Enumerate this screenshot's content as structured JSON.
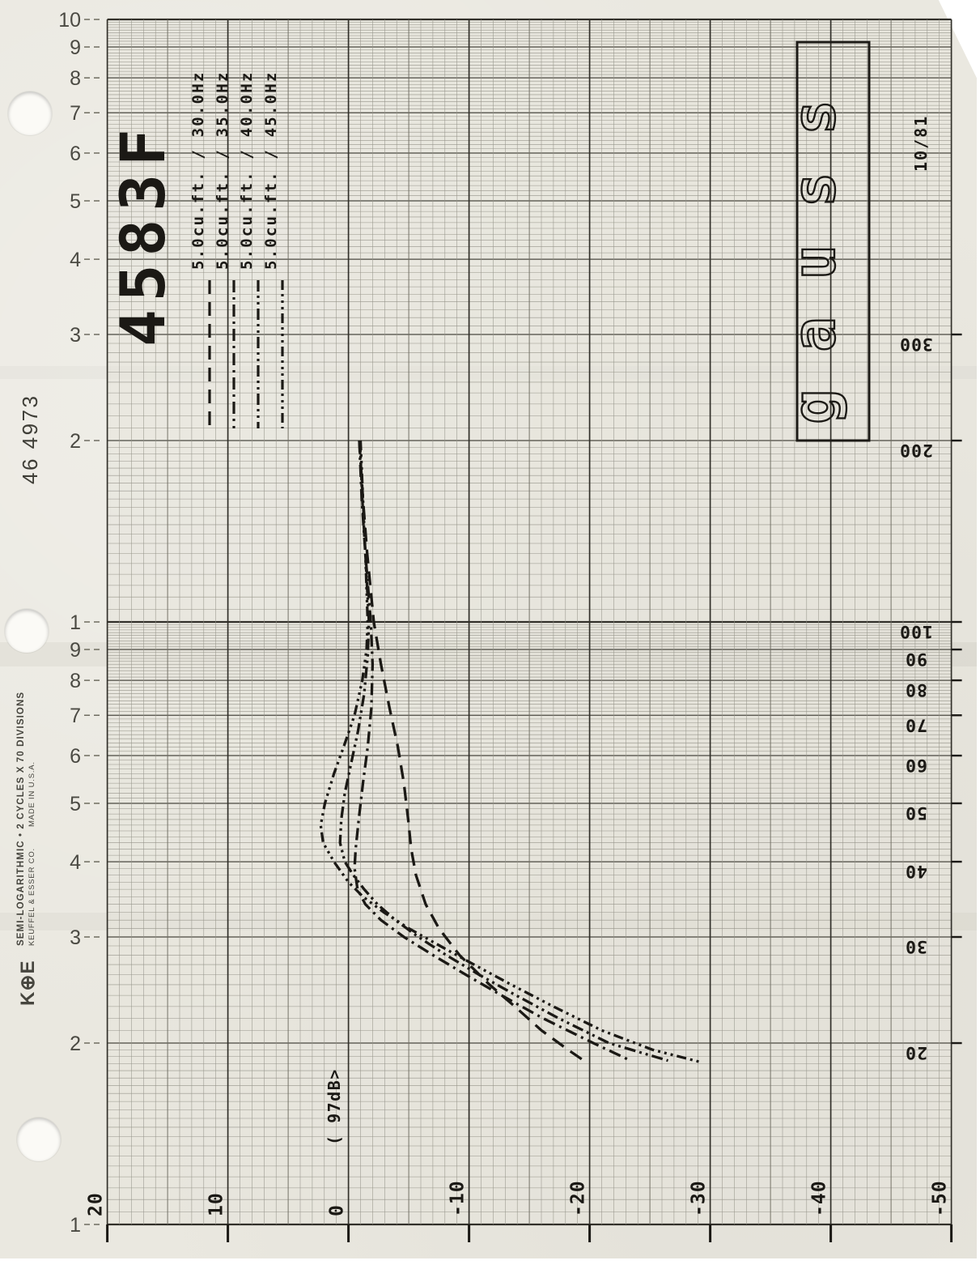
{
  "colors": {
    "ink": "#1b1915",
    "paper": "#eae8e0",
    "grid_major": "#32302a",
    "grid_int": "#4a4840",
    "grid_mid": "#6f6d62",
    "grid_minor": "#96948a",
    "print": "#4b4a43",
    "leader": "#6e6c60"
  },
  "page": {
    "catalog_number": "46 4973",
    "ke_logo": "K⊕E",
    "brand_line1": "SEMI-LOGARITHMIC • 2 CYCLES X 70 DIVISIONS",
    "brand_line2": "KEUFFEL & ESSER CO.",
    "brand_line3": "MADE IN U.S.A."
  },
  "annotations": {
    "title": "4583F",
    "date": "10/81",
    "logo_box": "gauss",
    "reference_level": "( 97dB>"
  },
  "chart_data": {
    "type": "line",
    "title": "4583F",
    "x_axis": {
      "tick_labels": [
        "20",
        "10",
        "0",
        "-10",
        "-20",
        "-30",
        "-40",
        "-50"
      ],
      "tick_values": [
        20,
        10,
        0,
        -10,
        -20,
        -30,
        -40,
        -50
      ],
      "range": [
        20,
        -50
      ],
      "grid": true
    },
    "y_axis": {
      "scale": "log",
      "tick_labels": [
        "300",
        "200",
        "100",
        "90",
        "80",
        "70",
        "60",
        "50",
        "40",
        "30",
        "20"
      ],
      "tick_values": [
        300,
        200,
        100,
        90,
        80,
        70,
        60,
        50,
        40,
        30,
        20
      ],
      "range": [
        1000,
        10
      ],
      "grid": true
    },
    "left_log_scale_labels": [
      "10",
      "9",
      "8",
      "7",
      "6",
      "5",
      "4",
      "3",
      "2",
      "1",
      "9",
      "8",
      "7",
      "6",
      "5",
      "4",
      "3",
      "2",
      "1"
    ],
    "left_log_scale_freqs": [
      1000,
      900,
      800,
      700,
      600,
      500,
      400,
      300,
      200,
      100,
      90,
      80,
      70,
      60,
      50,
      40,
      30,
      20,
      10
    ],
    "legend_position": "top-left, rotated 90deg",
    "series": [
      {
        "label": "5.0cu.ft. / 30.0Hz",
        "style": "long-dash",
        "points": [
          [
            200,
            -0.9
          ],
          [
            160,
            -1.2
          ],
          [
            130,
            -1.55
          ],
          [
            100,
            -2.1
          ],
          [
            85,
            -2.7
          ],
          [
            72,
            -3.4
          ],
          [
            62,
            -4.1
          ],
          [
            54,
            -4.6
          ],
          [
            47,
            -4.95
          ],
          [
            42,
            -5.2
          ],
          [
            38,
            -5.6
          ],
          [
            34,
            -6.4
          ],
          [
            31,
            -7.5
          ],
          [
            28,
            -9.2
          ],
          [
            25,
            -11.7
          ],
          [
            23,
            -13.8
          ],
          [
            21,
            -16.0
          ],
          [
            19.5,
            -18.2
          ],
          [
            18.6,
            -19.7
          ]
        ]
      },
      {
        "label": "5.0cu.ft. / 35.0Hz",
        "style": "dash-dot",
        "points": [
          [
            200,
            -0.9
          ],
          [
            160,
            -1.1
          ],
          [
            130,
            -1.4
          ],
          [
            100,
            -1.85
          ],
          [
            85,
            -2.0
          ],
          [
            72,
            -1.9
          ],
          [
            62,
            -1.6
          ],
          [
            54,
            -1.2
          ],
          [
            47,
            -0.85
          ],
          [
            42,
            -0.6
          ],
          [
            39,
            -0.5
          ],
          [
            36,
            -0.75
          ],
          [
            34,
            -1.4
          ],
          [
            32,
            -2.7
          ],
          [
            30,
            -4.6
          ],
          [
            28,
            -7.0
          ],
          [
            26,
            -9.7
          ],
          [
            24,
            -12.7
          ],
          [
            22,
            -16.1
          ],
          [
            20,
            -20.3
          ],
          [
            18.7,
            -23.4
          ]
        ]
      },
      {
        "label": "5.0cu.ft. / 40.0Hz",
        "style": "dash-dot-dot",
        "points": [
          [
            200,
            -0.95
          ],
          [
            160,
            -1.15
          ],
          [
            130,
            -1.4
          ],
          [
            100,
            -1.7
          ],
          [
            88,
            -1.6
          ],
          [
            76,
            -1.3
          ],
          [
            66,
            -0.8
          ],
          [
            58,
            -0.2
          ],
          [
            52,
            0.3
          ],
          [
            47,
            0.6
          ],
          [
            43,
            0.7
          ],
          [
            40,
            0.3
          ],
          [
            38,
            -0.4
          ],
          [
            36,
            -1.3
          ],
          [
            34,
            -2.4
          ],
          [
            32,
            -3.9
          ],
          [
            30,
            -5.8
          ],
          [
            28,
            -8.1
          ],
          [
            26,
            -10.8
          ],
          [
            24,
            -13.9
          ],
          [
            22,
            -17.4
          ],
          [
            20,
            -21.6
          ],
          [
            18.7,
            -26.5
          ]
        ]
      },
      {
        "label": "5.0cu.ft. / 45.0Hz",
        "style": "dash-dot-dot-dot",
        "points": [
          [
            200,
            -1.0
          ],
          [
            160,
            -1.2
          ],
          [
            130,
            -1.4
          ],
          [
            100,
            -1.6
          ],
          [
            90,
            -1.5
          ],
          [
            80,
            -1.15
          ],
          [
            70,
            -0.5
          ],
          [
            62,
            0.4
          ],
          [
            56,
            1.2
          ],
          [
            50,
            1.95
          ],
          [
            46,
            2.3
          ],
          [
            43,
            2.1
          ],
          [
            40,
            1.2
          ],
          [
            37,
            0.0
          ],
          [
            35,
            -1.2
          ],
          [
            33,
            -2.9
          ],
          [
            31,
            -5.0
          ],
          [
            29,
            -7.6
          ],
          [
            27,
            -10.4
          ],
          [
            25,
            -13.5
          ],
          [
            23,
            -17.0
          ],
          [
            21,
            -21.0
          ],
          [
            19.5,
            -25.2
          ],
          [
            18.6,
            -29.2
          ]
        ]
      }
    ]
  }
}
